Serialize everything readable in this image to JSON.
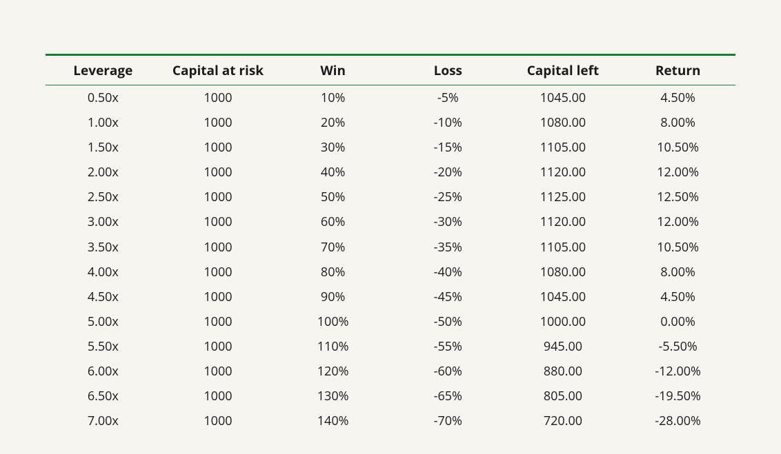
{
  "table": {
    "type": "table",
    "background_color": "#f6f5ef",
    "border_color": "#1f7a3a",
    "header_border_top_width": 3,
    "header_border_bottom_width": 1.5,
    "header_font_weight": 700,
    "header_fontsize_pt": 14,
    "body_fontsize_pt": 13,
    "text_color": "#1a1a1a",
    "columns": [
      {
        "key": "leverage",
        "label": "Leverage",
        "align": "center"
      },
      {
        "key": "capital",
        "label": "Capital at risk",
        "align": "center"
      },
      {
        "key": "win",
        "label": "Win",
        "align": "center"
      },
      {
        "key": "loss",
        "label": "Loss",
        "align": "center"
      },
      {
        "key": "capital_left",
        "label": "Capital left",
        "align": "center"
      },
      {
        "key": "return",
        "label": "Return",
        "align": "center"
      }
    ],
    "rows": [
      {
        "leverage": "0.50x",
        "capital": "1000",
        "win": "10%",
        "loss": "-5%",
        "capital_left": "1045.00",
        "return": "4.50%"
      },
      {
        "leverage": "1.00x",
        "capital": "1000",
        "win": "20%",
        "loss": "-10%",
        "capital_left": "1080.00",
        "return": "8.00%"
      },
      {
        "leverage": "1.50x",
        "capital": "1000",
        "win": "30%",
        "loss": "-15%",
        "capital_left": "1105.00",
        "return": "10.50%"
      },
      {
        "leverage": "2.00x",
        "capital": "1000",
        "win": "40%",
        "loss": "-20%",
        "capital_left": "1120.00",
        "return": "12.00%"
      },
      {
        "leverage": "2.50x",
        "capital": "1000",
        "win": "50%",
        "loss": "-25%",
        "capital_left": "1125.00",
        "return": "12.50%"
      },
      {
        "leverage": "3.00x",
        "capital": "1000",
        "win": "60%",
        "loss": "-30%",
        "capital_left": "1120.00",
        "return": "12.00%"
      },
      {
        "leverage": "3.50x",
        "capital": "1000",
        "win": "70%",
        "loss": "-35%",
        "capital_left": "1105.00",
        "return": "10.50%"
      },
      {
        "leverage": "4.00x",
        "capital": "1000",
        "win": "80%",
        "loss": "-40%",
        "capital_left": "1080.00",
        "return": "8.00%"
      },
      {
        "leverage": "4.50x",
        "capital": "1000",
        "win": "90%",
        "loss": "-45%",
        "capital_left": "1045.00",
        "return": "4.50%"
      },
      {
        "leverage": "5.00x",
        "capital": "1000",
        "win": "100%",
        "loss": "-50%",
        "capital_left": "1000.00",
        "return": "0.00%"
      },
      {
        "leverage": "5.50x",
        "capital": "1000",
        "win": "110%",
        "loss": "-55%",
        "capital_left": "945.00",
        "return": "-5.50%"
      },
      {
        "leverage": "6.00x",
        "capital": "1000",
        "win": "120%",
        "loss": "-60%",
        "capital_left": "880.00",
        "return": "-12.00%"
      },
      {
        "leverage": "6.50x",
        "capital": "1000",
        "win": "130%",
        "loss": "-65%",
        "capital_left": "805.00",
        "return": "-19.50%"
      },
      {
        "leverage": "7.00x",
        "capital": "1000",
        "win": "140%",
        "loss": "-70%",
        "capital_left": "720.00",
        "return": "-28.00%"
      }
    ]
  }
}
